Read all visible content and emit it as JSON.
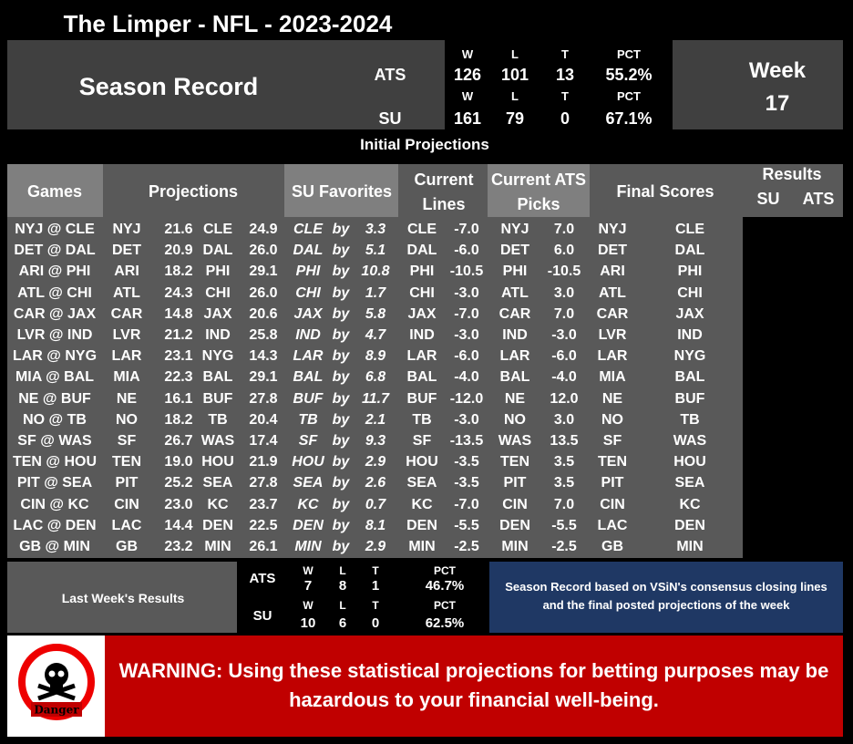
{
  "header": {
    "title": "The Limper - NFL - 2023-2024"
  },
  "season_record": {
    "label": "Season Record",
    "ats": {
      "label": "ATS",
      "headers": [
        "W",
        "L",
        "T",
        "PCT"
      ],
      "values": [
        "126",
        "101",
        "13",
        "55.2%"
      ]
    },
    "su": {
      "label": "SU",
      "headers": [
        "W",
        "L",
        "T",
        "PCT"
      ],
      "values": [
        "161",
        "79",
        "0",
        "67.1%"
      ]
    },
    "week_label": "Week",
    "week": "17"
  },
  "section_title": "Initial Projections",
  "table": {
    "columns": [
      "Games",
      "Projections",
      "SU Favorites",
      "Current Lines",
      "Current ATS Picks",
      "Final Scores",
      "Results"
    ],
    "results_sub": [
      "SU",
      "ATS"
    ],
    "rows": [
      [
        "NYJ @ CLE",
        "NYJ",
        "21.6",
        "CLE",
        "24.9",
        "CLE",
        "by",
        "3.3",
        "CLE",
        "-7.0",
        "NYJ",
        "7.0",
        "NYJ",
        "CLE"
      ],
      [
        "DET @ DAL",
        "DET",
        "20.9",
        "DAL",
        "26.0",
        "DAL",
        "by",
        "5.1",
        "DAL",
        "-6.0",
        "DET",
        "6.0",
        "DET",
        "DAL"
      ],
      [
        "ARI @ PHI",
        "ARI",
        "18.2",
        "PHI",
        "29.1",
        "PHI",
        "by",
        "10.8",
        "PHI",
        "-10.5",
        "PHI",
        "-10.5",
        "ARI",
        "PHI"
      ],
      [
        "ATL @ CHI",
        "ATL",
        "24.3",
        "CHI",
        "26.0",
        "CHI",
        "by",
        "1.7",
        "CHI",
        "-3.0",
        "ATL",
        "3.0",
        "ATL",
        "CHI"
      ],
      [
        "CAR @ JAX",
        "CAR",
        "14.8",
        "JAX",
        "20.6",
        "JAX",
        "by",
        "5.8",
        "JAX",
        "-7.0",
        "CAR",
        "7.0",
        "CAR",
        "JAX"
      ],
      [
        "LVR @ IND",
        "LVR",
        "21.2",
        "IND",
        "25.8",
        "IND",
        "by",
        "4.7",
        "IND",
        "-3.0",
        "IND",
        "-3.0",
        "LVR",
        "IND"
      ],
      [
        "LAR @ NYG",
        "LAR",
        "23.1",
        "NYG",
        "14.3",
        "LAR",
        "by",
        "8.9",
        "LAR",
        "-6.0",
        "LAR",
        "-6.0",
        "LAR",
        "NYG"
      ],
      [
        "MIA @ BAL",
        "MIA",
        "22.3",
        "BAL",
        "29.1",
        "BAL",
        "by",
        "6.8",
        "BAL",
        "-4.0",
        "BAL",
        "-4.0",
        "MIA",
        "BAL"
      ],
      [
        "NE @ BUF",
        "NE",
        "16.1",
        "BUF",
        "27.8",
        "BUF",
        "by",
        "11.7",
        "BUF",
        "-12.0",
        "NE",
        "12.0",
        "NE",
        "BUF"
      ],
      [
        "NO @ TB",
        "NO",
        "18.2",
        "TB",
        "20.4",
        "TB",
        "by",
        "2.1",
        "TB",
        "-3.0",
        "NO",
        "3.0",
        "NO",
        "TB"
      ],
      [
        "SF @ WAS",
        "SF",
        "26.7",
        "WAS",
        "17.4",
        "SF",
        "by",
        "9.3",
        "SF",
        "-13.5",
        "WAS",
        "13.5",
        "SF",
        "WAS"
      ],
      [
        "TEN @ HOU",
        "TEN",
        "19.0",
        "HOU",
        "21.9",
        "HOU",
        "by",
        "2.9",
        "HOU",
        "-3.5",
        "TEN",
        "3.5",
        "TEN",
        "HOU"
      ],
      [
        "PIT @ SEA",
        "PIT",
        "25.2",
        "SEA",
        "27.8",
        "SEA",
        "by",
        "2.6",
        "SEA",
        "-3.5",
        "PIT",
        "3.5",
        "PIT",
        "SEA"
      ],
      [
        "CIN @ KC",
        "CIN",
        "23.0",
        "KC",
        "23.7",
        "KC",
        "by",
        "0.7",
        "KC",
        "-7.0",
        "CIN",
        "7.0",
        "CIN",
        "KC"
      ],
      [
        "LAC @ DEN",
        "LAC",
        "14.4",
        "DEN",
        "22.5",
        "DEN",
        "by",
        "8.1",
        "DEN",
        "-5.5",
        "DEN",
        "-5.5",
        "LAC",
        "DEN"
      ],
      [
        "GB @ MIN",
        "GB",
        "23.2",
        "MIN",
        "26.1",
        "MIN",
        "by",
        "2.9",
        "MIN",
        "-2.5",
        "MIN",
        "-2.5",
        "GB",
        "MIN"
      ]
    ]
  },
  "last_week": {
    "label": "Last Week's Results",
    "ats": {
      "label": "ATS",
      "headers": [
        "W",
        "L",
        "T",
        "PCT"
      ],
      "values": [
        "7",
        "8",
        "1",
        "46.7%"
      ]
    },
    "su": {
      "label": "SU",
      "headers": [
        "W",
        "L",
        "T",
        "PCT"
      ],
      "values": [
        "10",
        "6",
        "0",
        "62.5%"
      ]
    }
  },
  "note": "Season Record based on VSiN's consensus closing lines and the final posted projections of the week",
  "warning": {
    "icon_label": "Danger",
    "text": "WARNING: Using these statistical projections for betting purposes may be hazardous to your financial well-being."
  }
}
